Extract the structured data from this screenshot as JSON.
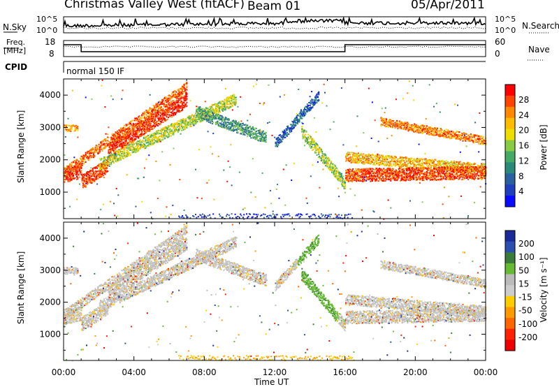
{
  "header": {
    "station": "Christmas Valley West (fitACF)",
    "beam": "Beam 01",
    "date": "05/Apr/2011"
  },
  "top_panels": {
    "nsky_label": "N.Sky",
    "nsearch_label": "N.Search",
    "noise_ticks": [
      "10^5",
      "10^0"
    ],
    "freq_label_1": "Freq.",
    "freq_label_2": "[MHz]",
    "freq_ticks": [
      "18",
      "8"
    ],
    "nave_label": "Nave",
    "nave_ticks": [
      "60",
      "0"
    ],
    "cpid_label": "CPID",
    "cpid_value": "normal 150 IF"
  },
  "chart_data": [
    {
      "type": "heatmap",
      "name": "power",
      "ylabel": "Slant Range [km]",
      "yticks": [
        1000,
        2000,
        3000,
        4000
      ],
      "ylim": [
        180,
        4500
      ],
      "colorbar_label": "Power [dB]",
      "colorbar_ticks": [
        "28",
        "24",
        "20",
        "16",
        "12",
        "8",
        "4"
      ],
      "colors": [
        "#ff0000",
        "#ff4400",
        "#ff8800",
        "#ffbb00",
        "#eedd00",
        "#88cc44",
        "#44aa66",
        "#2a8a7a",
        "#2a5fa0",
        "#1f3fbf",
        "#0a0aff"
      ]
    },
    {
      "type": "heatmap",
      "name": "velocity",
      "ylabel": "Slant Range [km]",
      "yticks": [
        1000,
        2000,
        3000,
        4000
      ],
      "ylim": [
        180,
        4500
      ],
      "colorbar_label": "Velocity [m s⁻¹]",
      "colorbar_ticks": [
        "200",
        "100",
        "50",
        "15",
        "-15",
        "-50",
        "-100",
        "-200"
      ],
      "colors": [
        "#1a2a9a",
        "#2a4fb0",
        "#3a7a3a",
        "#66bb33",
        "#bbbbbb",
        "#cccccc",
        "#ffcc00",
        "#ff9900",
        "#ff6600",
        "#ff2200",
        "#ee0000"
      ]
    }
  ],
  "xaxis": {
    "label": "Time UT",
    "ticks": [
      "00:00",
      "04:00",
      "08:00",
      "12:00",
      "16:00",
      "20:00",
      "00:00"
    ]
  }
}
